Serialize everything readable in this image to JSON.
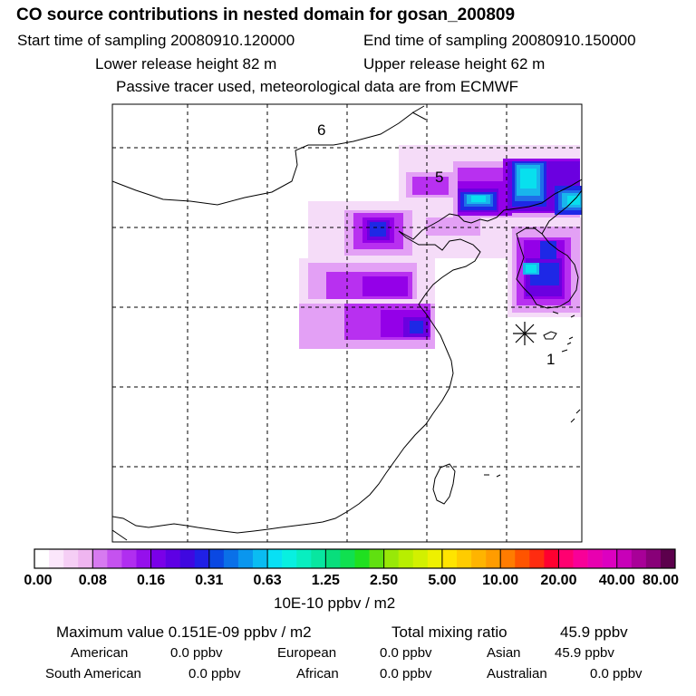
{
  "title": "CO  source contributions in nested domain for gosan_200809",
  "header": {
    "start": "Start time of sampling 20080910.120000",
    "end": "End time of sampling 20080910.150000",
    "lower": "Lower release height   82 m",
    "upper": "Upper release height   62 m",
    "note": "Passive tracer used, meteorological data are from ECMWF"
  },
  "map": {
    "labels": [
      "6",
      "5",
      "1"
    ],
    "colors": {
      "very_light": "#f5dcf8",
      "light": "#e3a0f5",
      "violet": "#b830f0",
      "purple": "#9400e8",
      "deep_purple": "#6b00e0",
      "blue": "#1e28e6",
      "mid_blue": "#1f6ee8",
      "sky": "#19b5ec",
      "cyan": "#08e0ee"
    }
  },
  "colorbar": {
    "ticks": [
      "0.00",
      "0.08",
      "0.16",
      "0.31",
      "0.63",
      "1.25",
      "2.50",
      "5.00",
      "10.00",
      "20.00",
      "40.00",
      "80.00"
    ],
    "colors": [
      "#ffffff",
      "#fbe6fb",
      "#f5cef5",
      "#efb5f0",
      "#d77af0",
      "#c552ef",
      "#b02ef0",
      "#9510ec",
      "#7a00e8",
      "#5e00e4",
      "#3f08e0",
      "#2020e6",
      "#0a48e2",
      "#0a70e8",
      "#0a96ee",
      "#0abcf2",
      "#08e0f4",
      "#08f0e0",
      "#08eec0",
      "#08e6a0",
      "#08de7c",
      "#10e050",
      "#20e020",
      "#60e010",
      "#98e808",
      "#b8ee00",
      "#d2f000",
      "#eef000",
      "#ffe400",
      "#ffcc00",
      "#ffb400",
      "#ff9c00",
      "#ff7c00",
      "#ff5400",
      "#ff2c10",
      "#ff0030",
      "#ff0070",
      "#f80098",
      "#e800b0",
      "#dc00c0",
      "#c800b8",
      "#a80098",
      "#880078",
      "#5c004c"
    ],
    "units": "10E-10 ppbv / m2"
  },
  "footer": {
    "maximum": "Maximum value  0.151E-09 ppbv / m2",
    "total_label": "Total mixing ratio",
    "total_value": "45.9 ppbv",
    "american_label": "American",
    "american_value": "0.0 ppbv",
    "european_label": "European",
    "european_value": "0.0 ppbv",
    "asian_label": "Asian",
    "asian_value": "45.9 ppbv",
    "south_american_label": "South American",
    "south_american_value": "0.0 ppbv",
    "african_label": "African",
    "african_value": "0.0 ppbv",
    "australian_label": "Australian",
    "australian_value": "0.0 ppbv"
  }
}
